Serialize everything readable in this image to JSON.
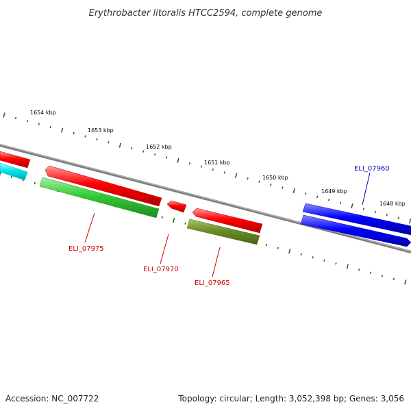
{
  "title": "Erythrobacter litoralis HTCC2594, complete genome",
  "footer": {
    "accession": "Accession: NC_007722",
    "summary": "Topology: circular; Length: 3,052,398 bp; Genes: 3,056"
  },
  "scale_labels": [
    "1654 kbp",
    "1653 kbp",
    "1652 kbp",
    "1651 kbp",
    "1650 kbp",
    "1649 kbp",
    "1648 kbp"
  ],
  "genes": [
    {
      "label": "ELI_07975",
      "color": "#cc0000"
    },
    {
      "label": "ELI_07970",
      "color": "#cc0000"
    },
    {
      "label": "ELI_07965",
      "color": "#cc0000"
    },
    {
      "label": "ELI_07960",
      "color": "#0000bb"
    }
  ],
  "colors": {
    "backbone": "#808080",
    "tick": "#1a6b1a",
    "red_gene": "#ff0000",
    "green_gene": "#33cc33",
    "olive_gene": "#6b8e23",
    "blue_gene": "#0000ff",
    "cyan_gene": "#00e5ee"
  }
}
